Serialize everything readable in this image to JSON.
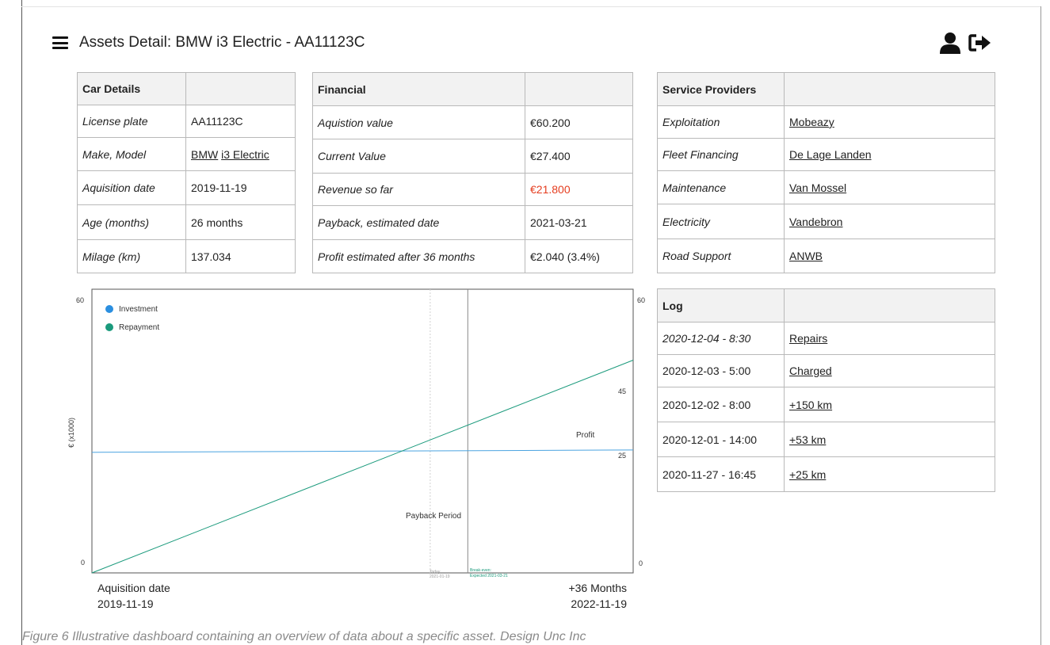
{
  "header": {
    "title": "Assets Detail: BMW i3 Electric - AA11123C",
    "menu_icon": "hamburger-menu-icon",
    "user_icon": "user-icon",
    "logout_icon": "sign-out-icon"
  },
  "car_details": {
    "heading": "Car Details",
    "rows": [
      {
        "label": "License plate",
        "value": "AA11123C"
      },
      {
        "label": "Make, Model",
        "make": "BMW",
        "model": "i3 Electric"
      },
      {
        "label": "Aquisition date",
        "value": "2019-11-19"
      },
      {
        "label": "Age (months)",
        "value": "26 months"
      },
      {
        "label": "Milage (km)",
        "value": "137.034"
      }
    ]
  },
  "financial": {
    "heading": "Financial",
    "rows": [
      {
        "label": "Aquistion value",
        "value": "€60.200"
      },
      {
        "label": "Current Value",
        "value": "€27.400"
      },
      {
        "label": "Revenue so far",
        "value": "€21.800"
      },
      {
        "label": "Payback, estimated date",
        "value": "2021-03-21"
      },
      {
        "label": "Profit estimated after 36 months",
        "value": "€2.040 (3.4%)"
      }
    ],
    "highlight_color": "#e53d1f"
  },
  "service_providers": {
    "heading": "Service Providers",
    "rows": [
      {
        "label": "Exploitation",
        "value": "Mobeazy"
      },
      {
        "label": "Fleet Financing",
        "value": "De Lage Landen"
      },
      {
        "label": "Maintenance",
        "value": "Van Mossel"
      },
      {
        "label": "Electricity",
        "value": "Vandebron"
      },
      {
        "label": "Road Support",
        "value": "ANWB"
      }
    ]
  },
  "log": {
    "heading": "Log",
    "rows": [
      {
        "time": "2020-12-04 - 8:30",
        "event": "Repairs"
      },
      {
        "time": "2020-12-03 - 5:00",
        "event": "Charged"
      },
      {
        "time": "2020-12-02 - 8:00",
        "event": "+150 km"
      },
      {
        "time": "2020-12-01 - 14:00",
        "event": "+53 km"
      },
      {
        "time": "2020-11-27 - 16:45",
        "event": "+25 km"
      }
    ]
  },
  "chart_data": {
    "type": "line",
    "ylabel": "€ (x1000)",
    "ylim": [
      0,
      60
    ],
    "x_range_months": [
      0,
      36
    ],
    "y_ticks_left": [
      "60",
      "0"
    ],
    "y_ticks_right": [
      "60",
      "45",
      "25",
      "0"
    ],
    "series": [
      {
        "name": "Investment",
        "color": "#2b8fe0",
        "line_color": "#4aa3e0",
        "x": [
          0,
          36
        ],
        "y": [
          25.5,
          26
        ]
      },
      {
        "name": "Repayment",
        "color": "#1a9a7c",
        "line_color": "#1a9a7c",
        "x": [
          0,
          36
        ],
        "y": [
          0,
          45
        ]
      }
    ],
    "annotations": {
      "profit": "Profit",
      "payback_period": "Payback Period",
      "today_label": "Today",
      "today_date": "2021-01-19",
      "breakeven_label": "Break-even:",
      "breakeven_date": "Expected 2021-03-21"
    },
    "markers": {
      "today_month": 22.5,
      "breakeven_month": 25
    },
    "x_start": {
      "label": "Aquisition date",
      "date": "2019-11-19"
    },
    "x_end": {
      "label": "+36 Months",
      "date": "2022-11-19"
    },
    "legend_position": "top-left",
    "grid": false
  },
  "caption": "Figure 6 Illustrative dashboard containing an overview of data about a specific asset. Design Unc Inc"
}
